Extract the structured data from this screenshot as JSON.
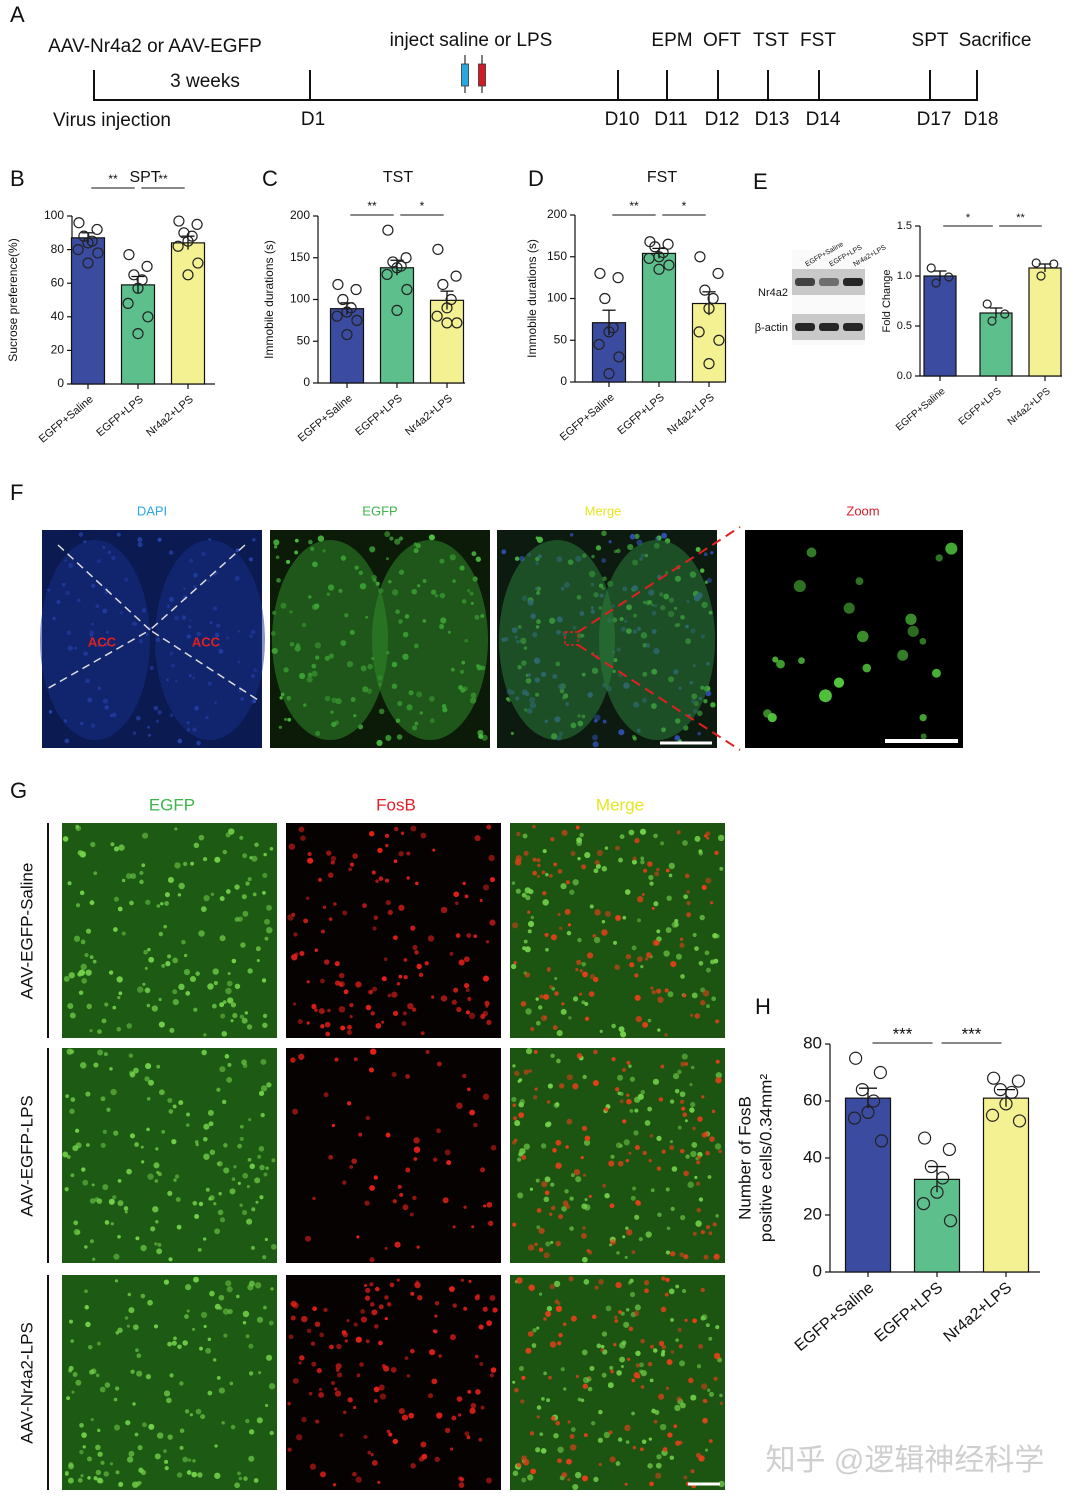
{
  "timeline": {
    "panel": "A",
    "top_labels": [
      "AAV-Nr4a2 or AAV-EGFP",
      "3 weeks",
      "inject saline or LPS"
    ],
    "start_label": "Virus injection",
    "days": [
      "D1",
      "D10",
      "D11",
      "D12",
      "D13",
      "D14",
      "D17",
      "D18"
    ],
    "events": [
      "EPM",
      "OFT",
      "TST",
      "FST",
      "SPT",
      "Sacrifice"
    ]
  },
  "chart_data": [
    {
      "type": "bar",
      "panel": "B",
      "title": "SPT",
      "ylabel": [
        "Sucrose preference(%)"
      ],
      "categories": [
        "EGFP+Saline",
        "EGFP+LPS",
        "Nr4a2+LPS"
      ],
      "colors": [
        "#3b4ba0",
        "#5cbf8c",
        "#f4f193"
      ],
      "values": [
        87,
        59,
        84
      ],
      "errors": [
        3,
        5,
        4
      ],
      "points": [
        [
          96,
          92,
          88,
          85,
          84,
          80,
          78,
          72
        ],
        [
          77,
          70,
          65,
          62,
          57,
          48,
          40,
          30
        ],
        [
          97,
          95,
          90,
          88,
          85,
          82,
          72,
          65
        ]
      ],
      "ylim": [
        0,
        100
      ],
      "yticks": [
        0,
        20,
        40,
        60,
        80,
        100
      ],
      "significance": [
        "**",
        "**"
      ]
    },
    {
      "type": "bar",
      "panel": "C",
      "title": "TST",
      "ylabel": [
        "Immobile durations (s)"
      ],
      "categories": [
        "EGFP+Saline",
        "EGFP+LPS",
        "Nr4a2+LPS"
      ],
      "colors": [
        "#3b4ba0",
        "#5cbf8c",
        "#f4f193"
      ],
      "values": [
        89,
        138,
        99
      ],
      "errors": [
        7,
        9,
        11
      ],
      "points": [
        [
          118,
          112,
          100,
          90,
          85,
          80,
          75,
          58
        ],
        [
          183,
          150,
          145,
          140,
          138,
          130,
          112,
          87
        ],
        [
          160,
          128,
          118,
          100,
          90,
          80,
          72,
          72
        ]
      ],
      "ylim": [
        0,
        200
      ],
      "yticks": [
        0,
        50,
        100,
        150,
        200
      ],
      "significance": [
        "**",
        "*"
      ]
    },
    {
      "type": "bar",
      "panel": "D",
      "title": "FST",
      "ylabel": [
        "Immobile durations (s)"
      ],
      "categories": [
        "EGFP+Saline",
        "EGFP+LPS",
        "Nr4a2+LPS"
      ],
      "colors": [
        "#3b4ba0",
        "#5cbf8c",
        "#f4f193"
      ],
      "values": [
        71,
        154,
        94
      ],
      "errors": [
        15,
        6,
        14
      ],
      "points": [
        [
          130,
          125,
          100,
          65,
          60,
          45,
          30,
          10
        ],
        [
          168,
          165,
          162,
          155,
          150,
          148,
          140,
          135
        ],
        [
          150,
          130,
          110,
          100,
          88,
          60,
          50,
          22
        ]
      ],
      "ylim": [
        0,
        200
      ],
      "yticks": [
        0,
        50,
        100,
        150,
        200
      ],
      "significance": [
        "**",
        "*"
      ]
    },
    {
      "type": "bar",
      "panel": "E",
      "ylabel": [
        "Fold Change"
      ],
      "categories": [
        "EGFP+Saline",
        "EGFP+LPS",
        "Nr4a2+LPS"
      ],
      "colors": [
        "#3b4ba0",
        "#5cbf8c",
        "#f4f193"
      ],
      "values": [
        1.0,
        0.63,
        1.08
      ],
      "errors": [
        0.05,
        0.05,
        0.04
      ],
      "points": [
        [
          1.08,
          0.99,
          0.93
        ],
        [
          0.72,
          0.62,
          0.55
        ],
        [
          1.13,
          1.12,
          1.0
        ]
      ],
      "ylim": [
        0,
        1.5
      ],
      "yticks": [
        {
          "value": 0,
          "label": "0.0"
        },
        0.5,
        {
          "value": 1,
          "label": "1.0"
        },
        1.5
      ],
      "significance": [
        "*",
        "**"
      ]
    },
    {
      "type": "bar",
      "panel": "H",
      "ylabel": [
        "Number of FosB",
        "positive cells/0.34mm²"
      ],
      "categories": [
        "EGFP+Saline",
        "EGFP+LPS",
        "Nr4a2+LPS"
      ],
      "colors": [
        "#3b4ba0",
        "#5cbf8c",
        "#f4f193"
      ],
      "values": [
        61,
        32.5,
        61
      ],
      "errors": [
        3.5,
        4.5,
        3
      ],
      "points": [
        [
          75,
          70,
          64,
          60,
          56,
          54,
          46
        ],
        [
          47,
          43,
          37,
          33,
          28,
          24,
          18
        ],
        [
          68,
          67,
          64,
          63,
          59,
          55,
          53
        ]
      ],
      "ylim": [
        0,
        80
      ],
      "yticks": [
        0,
        20,
        40,
        60,
        80
      ],
      "significance": [
        "***",
        "***"
      ]
    }
  ],
  "blot": {
    "bands": [
      "Nr4a2",
      "β-actin"
    ]
  },
  "figure_f": {
    "panel": "F",
    "columns": [
      "DAPI",
      "EGFP",
      "Merge",
      "Zoom"
    ],
    "region_labels": [
      "ACC",
      "ACC"
    ]
  },
  "figure_g": {
    "panel": "G",
    "columns": [
      "EGFP",
      "FosB",
      "Merge"
    ],
    "rows": [
      "AAV-EGFP-Saline",
      "AAV-EGFP-LPS",
      "AAV-Nr4a2-LPS"
    ]
  },
  "watermark": "知乎 @逻辑神经科学"
}
